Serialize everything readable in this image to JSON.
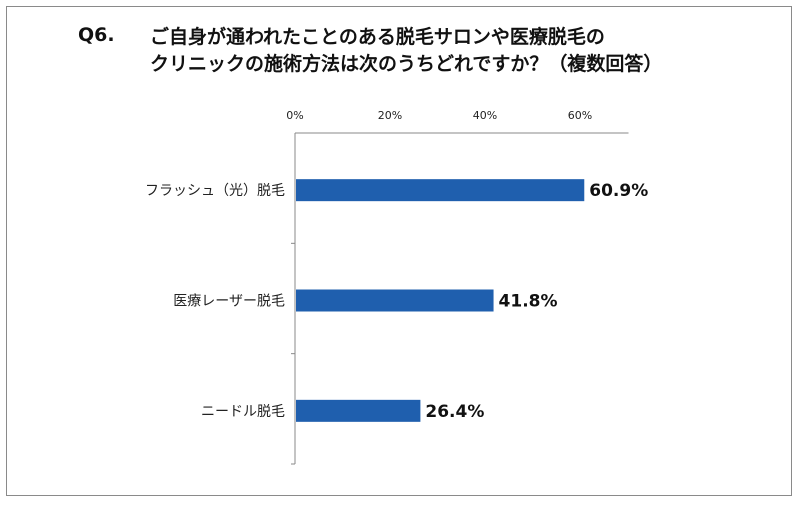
{
  "question": {
    "number": "Q6.",
    "line1": "ご自身が通われたことのある脱毛サロンや医療脱毛の",
    "line2": "クリニックの施術方法は次のうちどれですか？（複数回答）"
  },
  "chart_data": {
    "type": "bar",
    "orientation": "horizontal",
    "categories": [
      "フラッシュ（光）脱毛",
      "医療レーザー脱毛",
      "ニードル脱毛"
    ],
    "values": [
      60.9,
      41.8,
      26.4
    ],
    "value_labels": [
      "60.9%",
      "41.8%",
      "26.4%"
    ],
    "x_ticks": [
      "0%",
      "20%",
      "40%",
      "60%"
    ],
    "xlim": [
      0,
      70
    ],
    "grid": false,
    "bar_color": "#1f5fae"
  }
}
